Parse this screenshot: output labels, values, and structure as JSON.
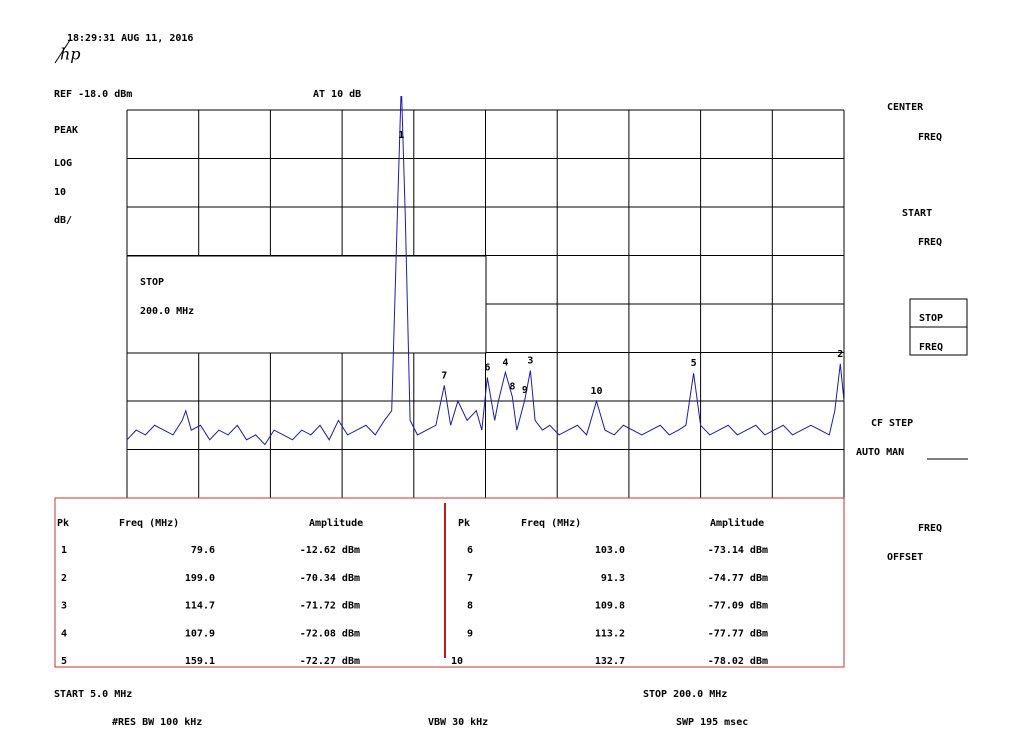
{
  "header": {
    "timestamp": "18:29:31 AUG 11, 2016",
    "logo": "hp"
  },
  "settings": {
    "reference": "REF -18.0   dBm",
    "attenuation": "AT 10   dB",
    "detector": "PEAK",
    "scale_type": "LOG",
    "scale_value": "10",
    "scale_unit": "dB/"
  },
  "active_function": {
    "label": "STOP",
    "value": "200.0  MHz"
  },
  "softkeys": [
    "CENTER",
    "FREQ",
    "START",
    "FREQ",
    "STOP",
    "FREQ",
    "CF STEP",
    "AUTO MAN",
    "FREQ",
    "OFFSET"
  ],
  "chart_data": {
    "type": "line",
    "color": "#1c1ca8",
    "xlim": [
      5,
      200
    ],
    "ylim": [
      -98,
      -18
    ],
    "x": [
      5,
      7.5,
      10,
      12.5,
      15,
      17.5,
      20,
      21,
      22.5,
      25,
      27.5,
      30,
      32.5,
      35,
      37.5,
      40,
      42.5,
      45,
      47.5,
      50,
      52.5,
      55,
      57.5,
      60,
      62.5,
      65,
      67.5,
      70,
      72.5,
      75,
      77,
      78.5,
      79.6,
      80.7,
      82,
      84,
      86.5,
      89,
      91.3,
      93,
      95,
      97.5,
      100,
      101.5,
      103,
      105,
      106,
      107.9,
      109.8,
      111,
      113.2,
      114.7,
      116,
      118,
      120,
      122.5,
      125,
      127.5,
      130,
      132.7,
      135,
      137.5,
      140,
      142.5,
      145,
      147.5,
      150,
      152.5,
      155,
      157,
      159.1,
      161,
      163.5,
      166,
      168.5,
      171,
      173.5,
      176,
      178.5,
      181,
      183.5,
      186,
      188.5,
      191,
      193.5,
      196,
      197.5,
      199,
      200
    ],
    "values": [
      -86,
      -84,
      -85,
      -83,
      -84,
      -85,
      -82,
      -80,
      -84,
      -83,
      -86,
      -84,
      -85,
      -83,
      -86,
      -85,
      -87,
      -84,
      -85,
      -86,
      -84,
      -85,
      -83,
      -86,
      -82,
      -85,
      -84,
      -83,
      -85,
      -82,
      -80,
      -40,
      -12.62,
      -40,
      -82,
      -85,
      -84,
      -83,
      -74.77,
      -83,
      -78,
      -82,
      -80,
      -84,
      -73.14,
      -82,
      -78,
      -72.08,
      -77.09,
      -84,
      -77.77,
      -71.72,
      -82,
      -84,
      -83,
      -85,
      -84,
      -83,
      -85,
      -78.02,
      -84,
      -85,
      -83,
      -84,
      -85,
      -84,
      -83,
      -85,
      -84,
      -83,
      -72.27,
      -83,
      -85,
      -84,
      -83,
      -85,
      -84,
      -83,
      -85,
      -84,
      -83,
      -85,
      -84,
      -83,
      -84,
      -85,
      -80,
      -70.34,
      -78
    ]
  },
  "peak_table": {
    "columns": [
      "Pk",
      "Freq (MHz)",
      "Amplitude"
    ],
    "rows": [
      [
        "1",
        79.6,
        {
          "value": -12.62,
          "label": "-12.62 dBm"
        }
      ],
      [
        "2",
        {
          "value": 199,
          "label": "199.0"
        },
        {
          "value": -70.34,
          "label": "-70.34 dBm"
        }
      ],
      [
        "3",
        114.7,
        {
          "value": -71.72,
          "label": "-71.72 dBm"
        }
      ],
      [
        "4",
        107.9,
        {
          "value": -72.08,
          "label": "-72.08 dBm"
        }
      ],
      [
        "5",
        159.1,
        {
          "value": -72.27,
          "label": "-72.27 dBm"
        }
      ],
      [
        "6",
        {
          "value": 103,
          "label": "103.0"
        },
        {
          "value": -73.14,
          "label": "-73.14 dBm"
        }
      ],
      [
        "7",
        91.3,
        {
          "value": -74.77,
          "label": "-74.77 dBm"
        }
      ],
      [
        "8",
        109.8,
        {
          "value": -77.09,
          "label": "-77.09 dBm"
        }
      ],
      [
        "9",
        113.2,
        {
          "value": -77.77,
          "label": "-77.77 dBm"
        }
      ],
      [
        "10",
        132.7,
        {
          "value": -78.02,
          "label": "-78.02 dBm"
        }
      ]
    ]
  },
  "footer": {
    "start": "START 5.0   MHz",
    "stop": "STOP 200.0  MHz",
    "rbw": "#RES BW 100  kHz",
    "vbw": "VBW 30  kHz",
    "sweep": "SWP 195 msec"
  }
}
